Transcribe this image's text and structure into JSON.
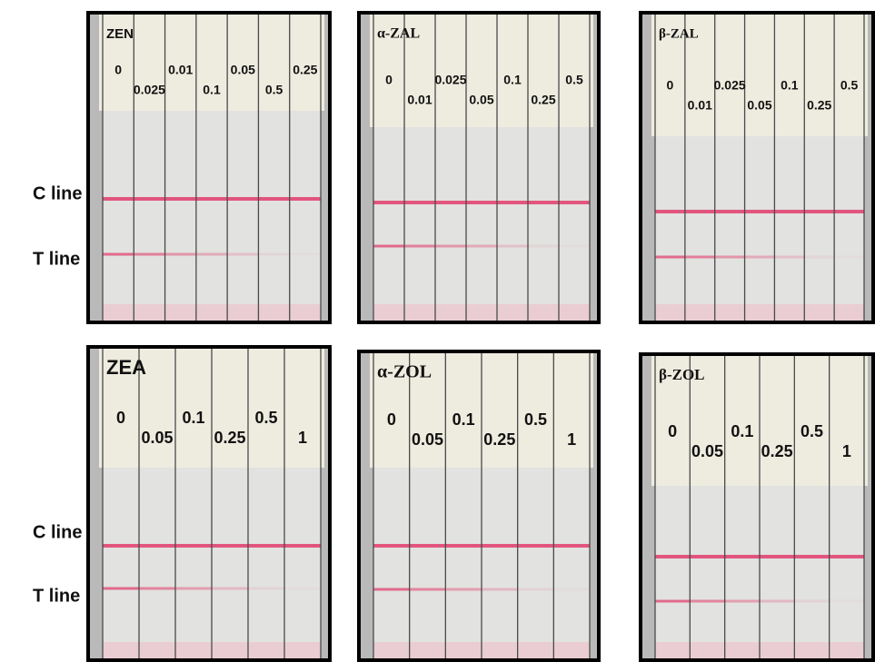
{
  "rows": [
    {
      "c_label": "C line",
      "t_label": "T line",
      "panels": [
        {
          "title": "ZEN",
          "upper_labels": [
            "0",
            "0.01",
            "0.05",
            "0.25"
          ],
          "lower_labels": [
            "0.025",
            "0.1",
            "0.5"
          ]
        },
        {
          "title": "α-ZAL",
          "upper_labels": [
            "0",
            "0.025",
            "0.1",
            "0.5"
          ],
          "lower_labels": [
            "0.01",
            "0.05",
            "0.25"
          ]
        },
        {
          "title": "β-ZAL",
          "upper_labels": [
            "0",
            "0.025",
            "0.1",
            "0.5"
          ],
          "lower_labels": [
            "0.01",
            "0.05",
            "0.25"
          ]
        }
      ]
    },
    {
      "c_label": "C line",
      "t_label": "T line",
      "panels": [
        {
          "title": "ZEA",
          "upper_labels": [
            "0",
            "0.1",
            "0.5"
          ],
          "lower_labels": [
            "0.05",
            "0.25",
            "1"
          ]
        },
        {
          "title": "α-ZOL",
          "upper_labels": [
            "0",
            "0.1",
            "0.5"
          ],
          "lower_labels": [
            "0.05",
            "0.25",
            "1"
          ]
        },
        {
          "title": "β-ZOL",
          "upper_labels": [
            "0",
            "0.1",
            "0.5"
          ],
          "lower_labels": [
            "0.05",
            "0.25",
            "1"
          ]
        }
      ]
    }
  ]
}
